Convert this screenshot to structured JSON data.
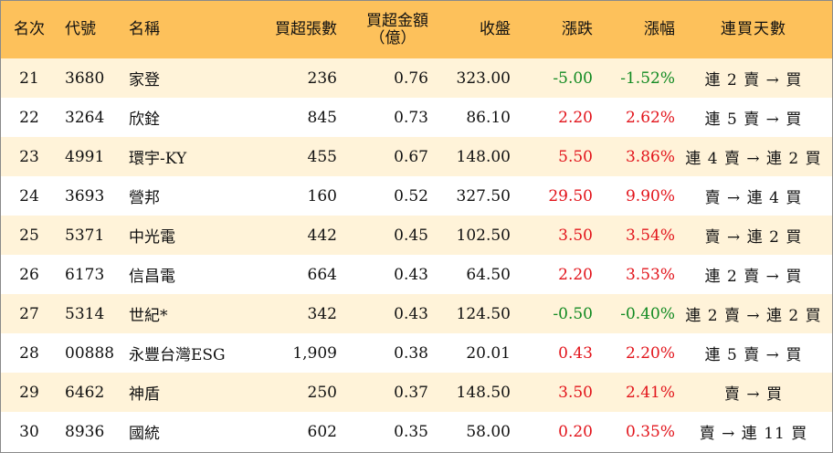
{
  "columns": {
    "rank": "名次",
    "code": "代號",
    "name": "名稱",
    "volume": "買超張數",
    "amount_l1": "買超金額",
    "amount_l2": "（億）",
    "close": "收盤",
    "change": "漲跌",
    "pct": "漲幅",
    "days": "連買天數"
  },
  "colors": {
    "up": "#e2141b",
    "down": "#118a21",
    "header": "#fdc15b",
    "stripe": "#fff3d9"
  },
  "rows": [
    {
      "rank": "21",
      "code": "3680",
      "name": "家登",
      "volume": "236",
      "amount": "0.76",
      "close": "323.00",
      "change": "-5.00",
      "pct": "-1.52%",
      "dir": "down",
      "days": "連 2 賣 → 買"
    },
    {
      "rank": "22",
      "code": "3264",
      "name": "欣銓",
      "volume": "845",
      "amount": "0.73",
      "close": "86.10",
      "change": "2.20",
      "pct": "2.62%",
      "dir": "up",
      "days": "連 5 賣 → 買"
    },
    {
      "rank": "23",
      "code": "4991",
      "name": "環宇-KY",
      "volume": "455",
      "amount": "0.67",
      "close": "148.00",
      "change": "5.50",
      "pct": "3.86%",
      "dir": "up",
      "days": "連 4 賣 → 連 2 買"
    },
    {
      "rank": "24",
      "code": "3693",
      "name": "營邦",
      "volume": "160",
      "amount": "0.52",
      "close": "327.50",
      "change": "29.50",
      "pct": "9.90%",
      "dir": "up",
      "days": "賣 → 連 4 買"
    },
    {
      "rank": "25",
      "code": "5371",
      "name": "中光電",
      "volume": "442",
      "amount": "0.45",
      "close": "102.50",
      "change": "3.50",
      "pct": "3.54%",
      "dir": "up",
      "days": "賣 → 連 2 買"
    },
    {
      "rank": "26",
      "code": "6173",
      "name": "信昌電",
      "volume": "664",
      "amount": "0.43",
      "close": "64.50",
      "change": "2.20",
      "pct": "3.53%",
      "dir": "up",
      "days": "連 2 賣 → 買"
    },
    {
      "rank": "27",
      "code": "5314",
      "name": "世紀*",
      "volume": "342",
      "amount": "0.43",
      "close": "124.50",
      "change": "-0.50",
      "pct": "-0.40%",
      "dir": "down",
      "days": "連 2 賣 → 連 2 買"
    },
    {
      "rank": "28",
      "code": "00888",
      "name": "永豐台灣ESG",
      "volume": "1,909",
      "amount": "0.38",
      "close": "20.01",
      "change": "0.43",
      "pct": "2.20%",
      "dir": "up",
      "days": "連 5 賣 → 買"
    },
    {
      "rank": "29",
      "code": "6462",
      "name": "神盾",
      "volume": "250",
      "amount": "0.37",
      "close": "148.50",
      "change": "3.50",
      "pct": "2.41%",
      "dir": "up",
      "days": "賣 → 買"
    },
    {
      "rank": "30",
      "code": "8936",
      "name": "國統",
      "volume": "602",
      "amount": "0.35",
      "close": "58.00",
      "change": "0.20",
      "pct": "0.35%",
      "dir": "up",
      "days": "賣 → 連 11 買"
    }
  ]
}
